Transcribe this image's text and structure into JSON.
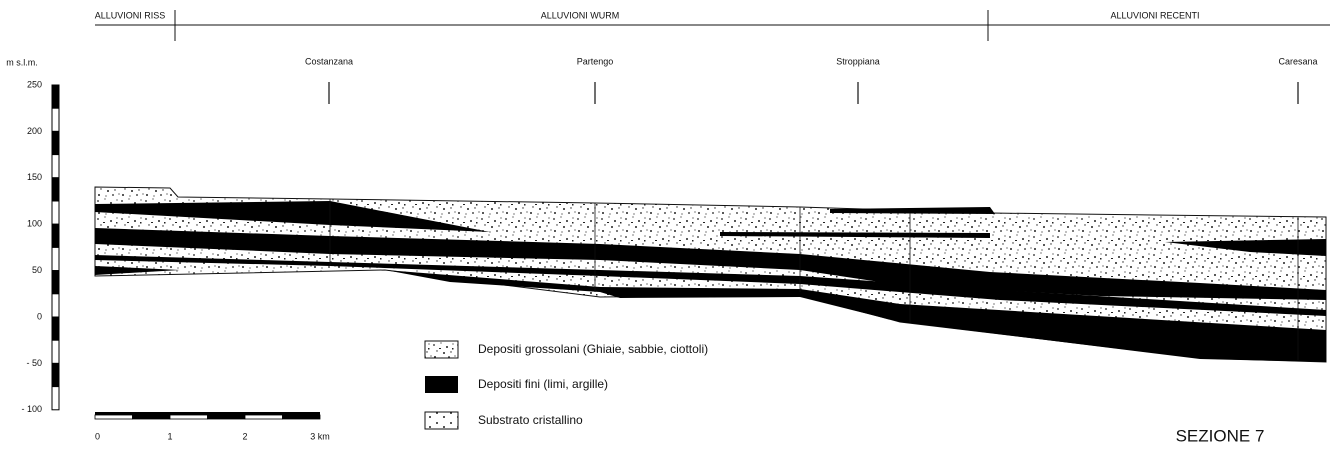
{
  "zones": [
    "ALLUVIONI RISS",
    "ALLUVIONI WURM",
    "ALLUVIONI RECENTI"
  ],
  "elevation_axis": {
    "unit": "m s.l.m.",
    "ticks": [
      "250",
      "200",
      "150",
      "100",
      "50",
      "0",
      "- 50",
      "- 100"
    ]
  },
  "towns": [
    "Costanzana",
    "Partengo",
    "Stroppiana",
    "Caresana"
  ],
  "legend": [
    "Depositi grossolani (Ghiaie, sabbie, ciottoli)",
    "Depositi fini (limi, argille)",
    "Substrato cristallino"
  ],
  "scale_bar": {
    "ticks": [
      "0",
      "1",
      "2",
      "3 km"
    ]
  },
  "section_label": "SEZIONE 7"
}
